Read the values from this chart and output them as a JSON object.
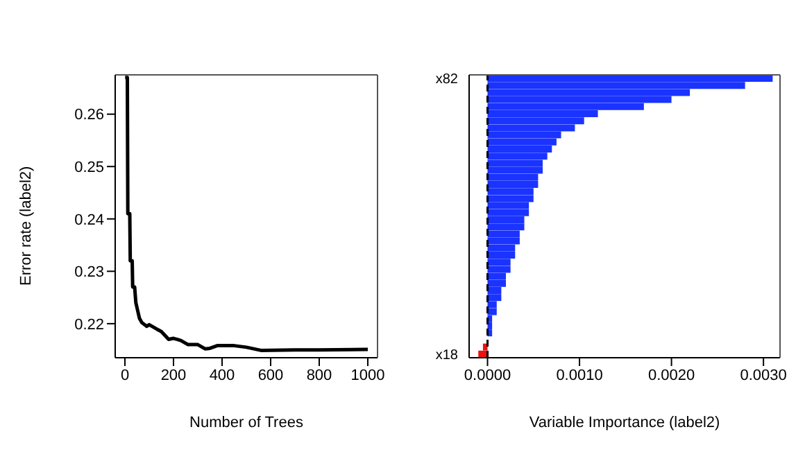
{
  "chart_data": [
    {
      "type": "line",
      "xlabel": "Number of Trees",
      "ylabel": "Error rate (label2)",
      "xlim": [
        -40,
        1040
      ],
      "ylim": [
        0.2135,
        0.2675
      ],
      "xticks": [
        0,
        200,
        400,
        600,
        800,
        1000
      ],
      "yticks": [
        0.22,
        0.23,
        0.24,
        0.25,
        0.26
      ],
      "marker": "none",
      "line_style": "solid",
      "series": [
        {
          "color": "#000000",
          "x": [
            1,
            10,
            12,
            20,
            22,
            30,
            32,
            40,
            45,
            50,
            60,
            70,
            90,
            100,
            130,
            150,
            180,
            200,
            230,
            260,
            300,
            330,
            350,
            380,
            450,
            500,
            560,
            700,
            800,
            1000
          ],
          "values": [
            0.267,
            0.267,
            0.241,
            0.241,
            0.232,
            0.232,
            0.227,
            0.227,
            0.224,
            0.223,
            0.221,
            0.2202,
            0.2195,
            0.2198,
            0.219,
            0.2185,
            0.217,
            0.2172,
            0.2168,
            0.216,
            0.216,
            0.2152,
            0.2153,
            0.2158,
            0.2158,
            0.2155,
            0.2149,
            0.215,
            0.215,
            0.2151
          ]
        }
      ]
    },
    {
      "type": "bar",
      "orientation": "horizontal",
      "xlabel": "Variable Importance (label2)",
      "xlim": [
        -0.0002,
        0.00318
      ],
      "xticks": [
        {
          "value": 0,
          "label": "0.0000"
        },
        {
          "value": 0.001,
          "label": "0.0010"
        },
        {
          "value": 0.002,
          "label": "0.0020"
        },
        {
          "value": 0.003,
          "label": "0.0030"
        }
      ],
      "categories": [
        "x82",
        null,
        null,
        null,
        null,
        null,
        null,
        null,
        null,
        null,
        null,
        null,
        null,
        null,
        null,
        null,
        null,
        null,
        null,
        null,
        null,
        null,
        null,
        null,
        null,
        null,
        null,
        null,
        null,
        null,
        null,
        null,
        null,
        null,
        null,
        null,
        null,
        null,
        null,
        "x18"
      ],
      "values": [
        0.0031,
        0.0028,
        0.0022,
        0.002,
        0.0017,
        0.0012,
        0.00105,
        0.00095,
        0.0008,
        0.00075,
        0.0007,
        0.00065,
        0.0006,
        0.0006,
        0.00055,
        0.00055,
        0.0005,
        0.0005,
        0.00045,
        0.00045,
        0.0004,
        0.0004,
        0.00035,
        0.00035,
        0.0003,
        0.0003,
        0.00025,
        0.00025,
        0.0002,
        0.0002,
        0.00015,
        0.00015,
        0.0001,
        0.0001,
        5e-05,
        5e-05,
        5e-05,
        0,
        -5e-05,
        -0.0001
      ],
      "colors": [
        "#1a33ff",
        "#1a33ff",
        "#1a33ff",
        "#1a33ff",
        "#1a33ff",
        "#1a33ff",
        "#1a33ff",
        "#1a33ff",
        "#1a33ff",
        "#1a33ff",
        "#1a33ff",
        "#1a33ff",
        "#1a33ff",
        "#1a33ff",
        "#1a33ff",
        "#1a33ff",
        "#1a33ff",
        "#1a33ff",
        "#1a33ff",
        "#1a33ff",
        "#1a33ff",
        "#1a33ff",
        "#1a33ff",
        "#1a33ff",
        "#1a33ff",
        "#1a33ff",
        "#1a33ff",
        "#1a33ff",
        "#1a33ff",
        "#1a33ff",
        "#1a33ff",
        "#1a33ff",
        "#1a33ff",
        "#1a33ff",
        "#1a33ff",
        "#1a33ff",
        "#1a33ff",
        "#1a33ff",
        "#ee1111",
        "#ee1111"
      ],
      "ref_lines": [
        {
          "axis": "x",
          "value": 0,
          "line_style": "dashed",
          "color": "#000000"
        }
      ]
    }
  ]
}
